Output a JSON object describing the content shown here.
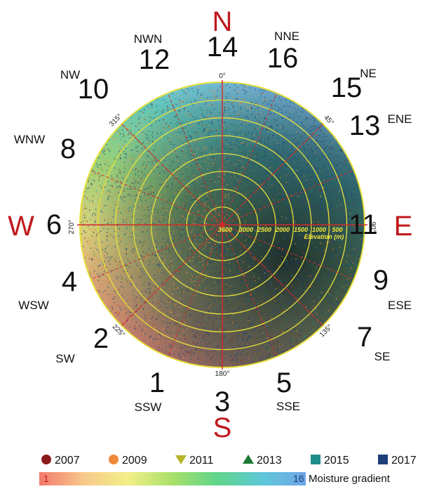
{
  "chart_data": {
    "type": "scatter",
    "projection": "polar",
    "angle_unit": "degrees",
    "radial_axis": {
      "label": "Elevation (m)",
      "ticks": [
        "3600",
        "3000",
        "2500",
        "2000",
        "1500",
        "1000",
        "500"
      ],
      "range": [
        3600,
        500
      ],
      "note": "center is highest elevation"
    },
    "angle_ticks": [
      {
        "label": "0°",
        "value": 0
      },
      {
        "label": "45°",
        "value": 45
      },
      {
        "label": "90°",
        "value": 90
      },
      {
        "label": "135°",
        "value": 135
      },
      {
        "label": "180°",
        "value": 180
      },
      {
        "label": "225°",
        "value": 225
      },
      {
        "label": "270°",
        "value": 270
      },
      {
        "label": "315°",
        "value": 315
      }
    ],
    "cardinals": [
      {
        "label": "N",
        "angle": 0
      },
      {
        "label": "E",
        "angle": 90
      },
      {
        "label": "S",
        "angle": 180
      },
      {
        "label": "W",
        "angle": 270
      }
    ],
    "directions": [
      {
        "name": "NNE",
        "num": "16",
        "angle": 22.5
      },
      {
        "name": "NE",
        "num": "15",
        "angle": 45
      },
      {
        "name": "ENE",
        "num": "13",
        "angle": 67.5
      },
      {
        "name": "",
        "num": "11",
        "angle": 90
      },
      {
        "name": "ESE",
        "num": "9",
        "angle": 112.5
      },
      {
        "name": "SE",
        "num": "7",
        "angle": 135
      },
      {
        "name": "SSE",
        "num": "5",
        "angle": 157.5
      },
      {
        "name": "",
        "num": "3",
        "angle": 180
      },
      {
        "name": "SSW",
        "num": "1",
        "angle": 202.5
      },
      {
        "name": "SW",
        "num": "2",
        "angle": 225
      },
      {
        "name": "WSW",
        "num": "4",
        "angle": 247.5
      },
      {
        "name": "",
        "num": "6",
        "angle": 270
      },
      {
        "name": "WNW",
        "num": "8",
        "angle": 292.5
      },
      {
        "name": "NW",
        "num": "10",
        "angle": 315
      },
      {
        "name": "NWN",
        "num": "12",
        "angle": 337.5
      },
      {
        "name": "",
        "num": "14",
        "angle": 0
      }
    ],
    "series": [
      {
        "name": "2007",
        "marker": "circle",
        "color": "#8b1a1a"
      },
      {
        "name": "2009",
        "marker": "circle",
        "color": "#f0883a"
      },
      {
        "name": "2011",
        "marker": "triangle-down",
        "color": "#b5b52a"
      },
      {
        "name": "2013",
        "marker": "triangle-up",
        "color": "#1f7a34"
      },
      {
        "name": "2015",
        "marker": "square",
        "color": "#1f8c8c"
      },
      {
        "name": "2017",
        "marker": "square",
        "color": "#1c3f7a"
      }
    ],
    "colorbar": {
      "min": "1",
      "max": "16",
      "label": "Moisture gradient",
      "colors": [
        "#f27a6e",
        "#f7c98a",
        "#f2ef88",
        "#a8e06a",
        "#5fd58a",
        "#5ec8d6",
        "#6fa6e8"
      ]
    },
    "grid": true
  }
}
